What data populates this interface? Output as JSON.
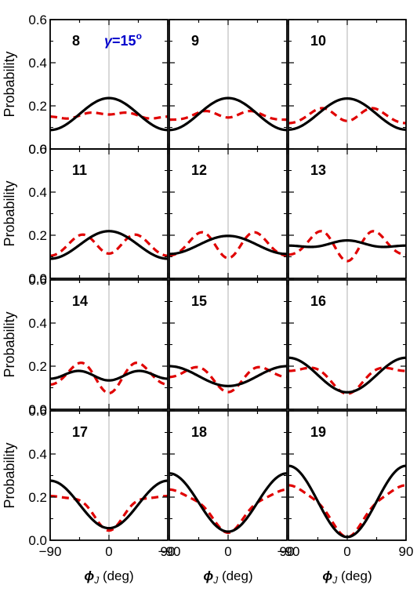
{
  "chart_data": {
    "type": "line",
    "annotation": {
      "symbol": "γ",
      "text": "=15",
      "sup": "o"
    },
    "xlabel": {
      "symbol": "ϕ",
      "sub": "J",
      "text": " (deg)"
    },
    "ylabel": "Probability",
    "xlim": [
      -90,
      90
    ],
    "ylim": [
      0,
      0.6
    ],
    "xticks": [
      "−90",
      "0",
      "90"
    ],
    "yticks": [
      "0.0",
      "0.2",
      "0.4",
      "0.6"
    ],
    "series_styles": {
      "black": {
        "color": "#000000",
        "dash": "solid"
      },
      "red": {
        "color": "#e00000",
        "dash": "dashed"
      }
    },
    "panels": [
      {
        "label": "8",
        "black": {
          "a": 0.162,
          "b": 0.074,
          "c": 0.0
        },
        "red": {
          "a": 0.155,
          "b": 0.012,
          "c": 0.0
        },
        "red_m": -0.007
      },
      {
        "label": "9",
        "black": {
          "a": 0.162,
          "b": 0.074,
          "c": 0.0
        },
        "red": {
          "a": 0.155,
          "b": 0.012,
          "c": -0.014
        },
        "red_m": -0.007
      },
      {
        "label": "10",
        "black": {
          "a": 0.162,
          "b": 0.072,
          "c": 0.0
        },
        "red": {
          "a": 0.155,
          "b": 0.012,
          "c": -0.03
        },
        "red_m": -0.007
      },
      {
        "label": "11",
        "black": {
          "a": 0.155,
          "b": 0.064,
          "c": 0.0
        },
        "red": {
          "a": 0.155,
          "b": 0.012,
          "c": -0.045
        },
        "red_m": -0.007
      },
      {
        "label": "12",
        "black": {
          "a": 0.155,
          "b": 0.042,
          "c": 0.0
        },
        "red": {
          "a": 0.155,
          "b": 0.006,
          "c": -0.055
        },
        "red_m": -0.012
      },
      {
        "label": "13",
        "black": {
          "a": 0.156,
          "b": 0.012,
          "c": 0.008
        },
        "red": {
          "a": 0.155,
          "b": 0.0,
          "c": -0.06
        },
        "red_m": -0.015
      },
      {
        "label": "14",
        "black": {
          "a": 0.158,
          "b": -0.004,
          "c": -0.02
        },
        "red": {
          "a": 0.155,
          "b": -0.01,
          "c": -0.06
        },
        "red_m": -0.01
      },
      {
        "label": "15",
        "black": {
          "a": 0.154,
          "b": -0.046,
          "c": 0.0
        },
        "red": {
          "a": 0.155,
          "b": -0.03,
          "c": -0.04
        },
        "red_m": -0.005
      },
      {
        "label": "16",
        "black": {
          "a": 0.159,
          "b": -0.08,
          "c": 0.0
        },
        "red": {
          "a": 0.155,
          "b": -0.05,
          "c": -0.03
        },
        "red_m": -0.003
      },
      {
        "label": "17",
        "black": {
          "a": 0.166,
          "b": -0.11,
          "c": 0.0
        },
        "red": {
          "a": 0.155,
          "b": -0.07,
          "c": -0.03
        },
        "red_m": -0.01
      },
      {
        "label": "18",
        "black": {
          "a": 0.175,
          "b": -0.135,
          "c": 0.0
        },
        "red": {
          "a": 0.155,
          "b": -0.09,
          "c": -0.02
        },
        "red_m": -0.01
      },
      {
        "label": "19",
        "black": {
          "a": 0.18,
          "b": -0.165,
          "c": 0.0
        },
        "red": {
          "a": 0.155,
          "b": -0.11,
          "c": -0.02
        },
        "red_m": -0.01
      }
    ]
  }
}
